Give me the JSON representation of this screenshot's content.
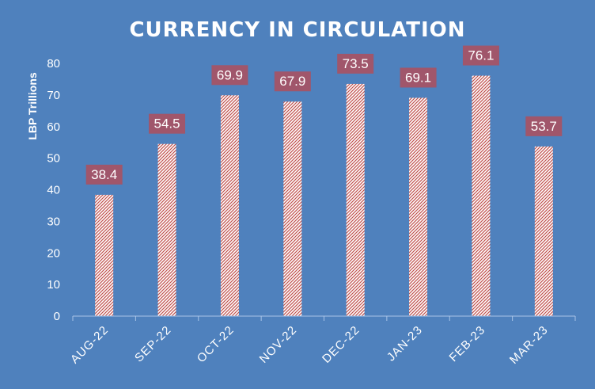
{
  "chart_data": {
    "type": "bar",
    "title": "CURRENCY  IN CIRCULATION",
    "ylabel": "LBP Trillions",
    "xlabel": "",
    "categories": [
      "AUG-22",
      "SEP-22",
      "OCT-22",
      "NOV-22",
      "DEC-22",
      "JAN-23",
      "FEB-23",
      "MAR-23"
    ],
    "values": [
      38.4,
      54.5,
      69.9,
      67.9,
      73.5,
      69.1,
      76.1,
      53.7
    ],
    "ylim": [
      0,
      80
    ],
    "yticks": [
      0,
      10,
      20,
      30,
      40,
      50,
      60,
      70,
      80
    ],
    "grid": false,
    "legend": "none",
    "colors": {
      "background": "#4f81bd",
      "bar_fill": "#ffffff",
      "bar_pattern": "#c0504d",
      "label_box": "#a0566b",
      "text": "#ffffff",
      "axis": "#a9c4e8"
    }
  }
}
